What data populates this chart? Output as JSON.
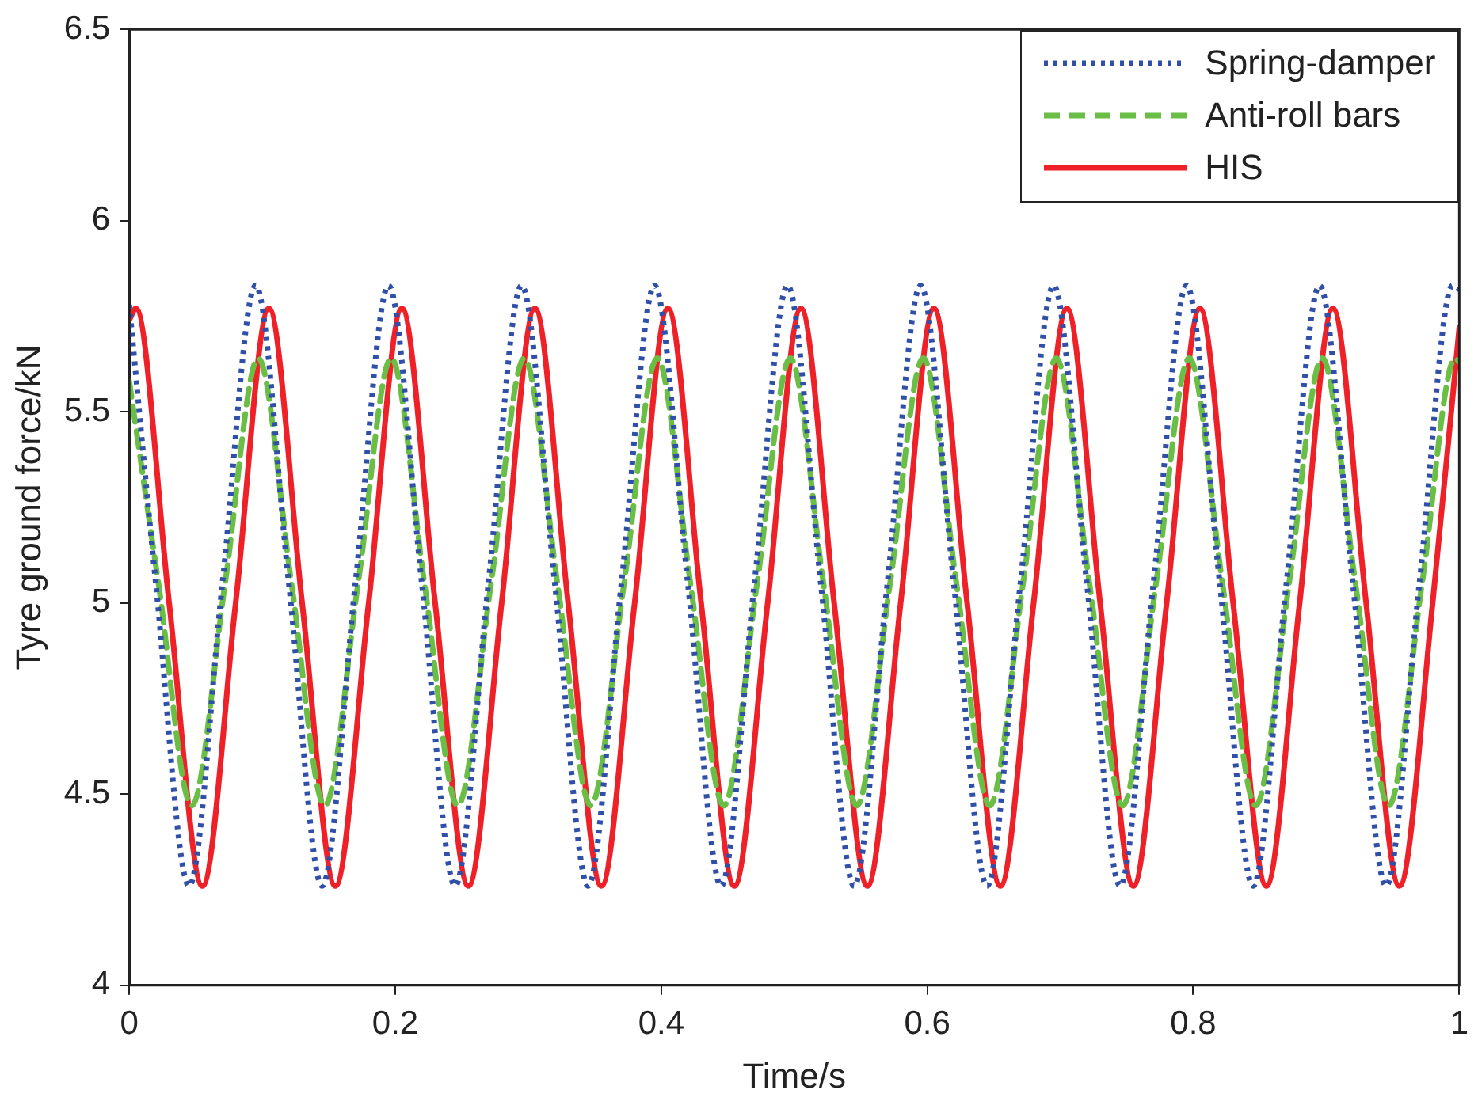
{
  "chart_data": {
    "type": "line",
    "xlabel": "Time/s",
    "ylabel": "Tyre ground force/kN",
    "xlim": [
      0,
      1
    ],
    "xticks": [
      0,
      0.2,
      0.4,
      0.6,
      0.8,
      1
    ],
    "ylim": [
      4,
      6.5
    ],
    "yticks": [
      4,
      4.5,
      5,
      5.5,
      6,
      6.5
    ],
    "grid": false,
    "legend": "top right",
    "marker": "none",
    "series": [
      {
        "name": "Spring-damper",
        "color": "#2f4fa8",
        "line_style": "dotted",
        "x": [
          0,
          0.02,
          0.045,
          0.07,
          0.095,
          0.12,
          0.145,
          0.17,
          0.195,
          0.22,
          0.245,
          0.27,
          0.295,
          0.32,
          0.345,
          0.37,
          0.395,
          0.42,
          0.445,
          0.47,
          0.495,
          0.52,
          0.545,
          0.57,
          0.595,
          0.62,
          0.645,
          0.67,
          0.695,
          0.72,
          0.745,
          0.77,
          0.795,
          0.82,
          0.845,
          0.87,
          0.895,
          0.92,
          0.945,
          0.97,
          0.995,
          1
        ],
        "values": [
          5.78,
          5.05,
          4.26,
          5.05,
          5.83,
          5.05,
          4.26,
          5.05,
          5.83,
          5.05,
          4.26,
          5.05,
          5.83,
          5.05,
          4.26,
          5.05,
          5.83,
          5.05,
          4.26,
          5.05,
          5.83,
          5.05,
          4.26,
          5.05,
          5.83,
          5.05,
          4.26,
          5.05,
          5.83,
          5.05,
          4.26,
          5.05,
          5.83,
          5.05,
          4.26,
          5.05,
          5.83,
          5.05,
          4.26,
          5.05,
          5.83,
          5.82
        ]
      },
      {
        "name": "Anti-roll bars",
        "color": "#6abd45",
        "line_style": "dashed",
        "x": [
          0,
          0.022,
          0.047,
          0.072,
          0.097,
          0.122,
          0.147,
          0.172,
          0.197,
          0.222,
          0.247,
          0.272,
          0.297,
          0.322,
          0.347,
          0.372,
          0.397,
          0.422,
          0.447,
          0.472,
          0.497,
          0.522,
          0.547,
          0.572,
          0.597,
          0.622,
          0.647,
          0.672,
          0.697,
          0.722,
          0.747,
          0.772,
          0.797,
          0.822,
          0.847,
          0.872,
          0.897,
          0.922,
          0.947,
          0.972,
          0.997,
          1
        ],
        "values": [
          5.58,
          5.05,
          4.47,
          5.05,
          5.64,
          5.05,
          4.47,
          5.05,
          5.64,
          5.05,
          4.47,
          5.05,
          5.64,
          5.05,
          4.47,
          5.05,
          5.64,
          5.05,
          4.47,
          5.05,
          5.64,
          5.05,
          4.47,
          5.05,
          5.64,
          5.05,
          4.47,
          5.05,
          5.64,
          5.05,
          4.47,
          5.05,
          5.64,
          5.05,
          4.47,
          5.05,
          5.64,
          5.05,
          4.47,
          5.05,
          5.64,
          5.63
        ]
      },
      {
        "name": "HIS",
        "color": "#ee2129",
        "line_style": "solid",
        "x": [
          0,
          0.005,
          0.03,
          0.055,
          0.08,
          0.105,
          0.13,
          0.155,
          0.18,
          0.205,
          0.23,
          0.255,
          0.28,
          0.305,
          0.33,
          0.355,
          0.38,
          0.405,
          0.43,
          0.455,
          0.48,
          0.505,
          0.53,
          0.555,
          0.58,
          0.605,
          0.63,
          0.655,
          0.68,
          0.705,
          0.73,
          0.755,
          0.78,
          0.805,
          0.83,
          0.855,
          0.88,
          0.905,
          0.93,
          0.955,
          0.98,
          1
        ],
        "values": [
          5.74,
          5.77,
          5.0,
          4.26,
          5.0,
          5.77,
          5.0,
          4.26,
          5.0,
          5.77,
          5.0,
          4.26,
          5.0,
          5.77,
          5.0,
          4.26,
          5.0,
          5.77,
          5.0,
          4.26,
          5.0,
          5.77,
          5.0,
          4.26,
          5.0,
          5.77,
          5.0,
          4.26,
          5.0,
          5.77,
          5.0,
          4.26,
          5.0,
          5.77,
          5.0,
          4.26,
          5.0,
          5.77,
          5.0,
          4.26,
          5.0,
          5.72
        ]
      }
    ]
  }
}
